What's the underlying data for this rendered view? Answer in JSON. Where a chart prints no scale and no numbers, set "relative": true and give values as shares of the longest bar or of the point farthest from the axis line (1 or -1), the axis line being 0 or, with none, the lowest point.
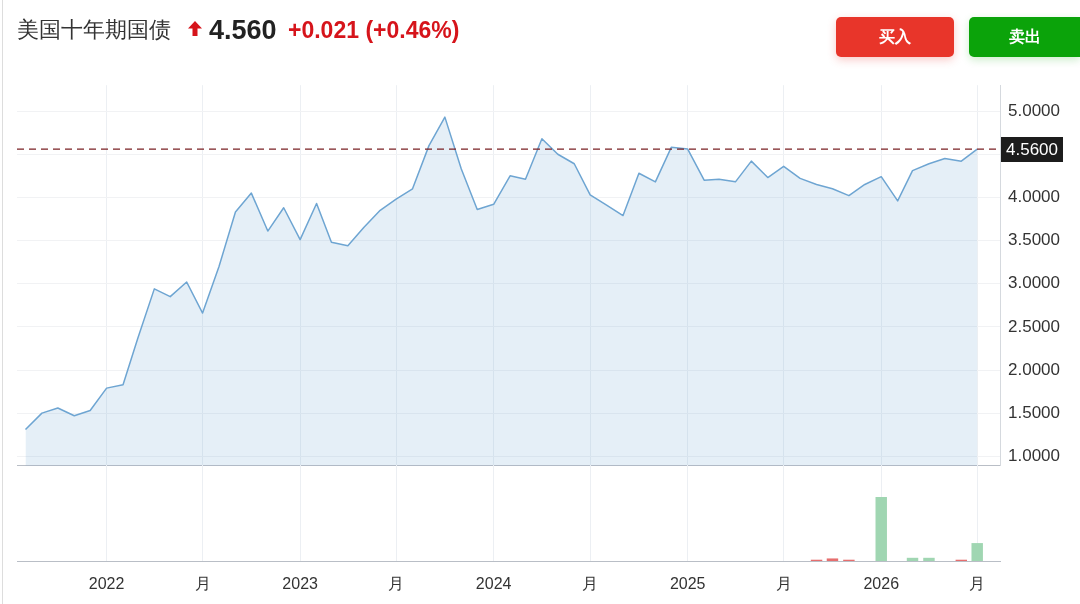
{
  "chart_data": [
    {
      "type": "area",
      "title": "美国十年期国债",
      "annotations": [
        "4.560",
        "+0.021 (+0.46%)",
        "买入",
        "卖出"
      ],
      "x": [
        "2021-08",
        "2021-09",
        "2021-10",
        "2021-11",
        "2021-12",
        "2022-01",
        "2022-02",
        "2022-03",
        "2022-04",
        "2022-05",
        "2022-06",
        "2022-07",
        "2022-08",
        "2022-09",
        "2022-10",
        "2022-11",
        "2022-12",
        "2023-01",
        "2023-02",
        "2023-03",
        "2023-04",
        "2023-05",
        "2023-06",
        "2023-07",
        "2023-08",
        "2023-09",
        "2023-10",
        "2023-11",
        "2023-12",
        "2024-01",
        "2024-02",
        "2024-03",
        "2024-04",
        "2024-05",
        "2024-06",
        "2024-07",
        "2024-08",
        "2024-09",
        "2024-10",
        "2024-11",
        "2024-12",
        "2025-01",
        "2025-02",
        "2025-03",
        "2025-04",
        "2025-05",
        "2025-06",
        "2025-07",
        "2025-08",
        "2025-09",
        "2025-10",
        "2025-11",
        "2025-12",
        "2026-01",
        "2026-02",
        "2026-03",
        "2026-04",
        "2026-05",
        "2026-06",
        "2026-07"
      ],
      "values": [
        1.31,
        1.5,
        1.56,
        1.47,
        1.53,
        1.79,
        1.83,
        2.37,
        2.94,
        2.85,
        3.02,
        2.66,
        3.2,
        3.83,
        4.05,
        3.61,
        3.88,
        3.51,
        3.93,
        3.48,
        3.44,
        3.65,
        3.85,
        3.98,
        4.1,
        4.6,
        4.93,
        4.33,
        3.86,
        3.92,
        4.25,
        4.21,
        4.68,
        4.5,
        4.39,
        4.03,
        3.91,
        3.79,
        4.28,
        4.18,
        4.58,
        4.56,
        4.2,
        4.21,
        4.18,
        4.42,
        4.23,
        4.36,
        4.22,
        4.15,
        4.1,
        4.02,
        4.15,
        4.24,
        3.96,
        4.31,
        4.39,
        4.45,
        4.42,
        4.56
      ],
      "color": "#6ea5d2",
      "xlim": [
        "2021-07-16",
        "2026-08-13"
      ],
      "xticks": [
        {
          "value": "2022-01",
          "label": null
        },
        {
          "value": "2022-07",
          "label": null
        },
        {
          "value": "2023-01",
          "label": null
        },
        {
          "value": "2023-07",
          "label": null
        },
        {
          "value": "2024-01",
          "label": null
        },
        {
          "value": "2024-07",
          "label": null
        },
        {
          "value": "2025-01",
          "label": null
        },
        {
          "value": "2025-07",
          "label": null
        },
        {
          "value": "2026-01",
          "label": null
        },
        {
          "value": "2026-07",
          "label": null
        }
      ],
      "ylim": [
        0.89,
        5.3
      ],
      "yticks": [
        {
          "value": 1,
          "label": "1.0000"
        },
        {
          "value": 1.5,
          "label": "1.5000"
        },
        {
          "value": 2,
          "label": "2.0000"
        },
        {
          "value": 2.5,
          "label": "2.5000"
        },
        {
          "value": 3,
          "label": "3.0000"
        },
        {
          "value": 3.5,
          "label": "3.5000"
        },
        {
          "value": 4,
          "label": "4.0000"
        },
        {
          "value": 4.5,
          "label": null
        },
        {
          "value": 5,
          "label": "5.0000"
        }
      ],
      "ref_lines": [
        {
          "axis": "y",
          "value": 4.56,
          "label": "4.5600",
          "color": "#7a2024",
          "line_style": "dashed"
        }
      ],
      "grid": true,
      "tick_labels": "y"
    },
    {
      "type": "bar",
      "relative": true,
      "x": [
        "2025-09",
        "2025-10",
        "2025-11",
        "2026-01",
        "2026-03",
        "2026-04",
        "2026-06",
        "2026-07"
      ],
      "values": [
        0.02,
        0.04,
        0.02,
        1,
        0.05,
        0.05,
        0.02,
        0.28
      ],
      "colors": [
        "#e66e6e",
        "#e66e6e",
        "#e66e6e",
        "#a0d6b2",
        "#a0d6b2",
        "#a0d6b2",
        "#e66e6e",
        "#a0d6b2"
      ],
      "xlim": [
        "2021-07-16",
        "2026-08-13"
      ],
      "xticks": [
        {
          "value": "2022-01",
          "label": "2022"
        },
        {
          "value": "2022-07",
          "label": "月"
        },
        {
          "value": "2023-01",
          "label": "2023"
        },
        {
          "value": "2023-07",
          "label": "月"
        },
        {
          "value": "2024-01",
          "label": "2024"
        },
        {
          "value": "2024-07",
          "label": "月"
        },
        {
          "value": "2025-01",
          "label": "2025"
        },
        {
          "value": "2025-07",
          "label": "月"
        },
        {
          "value": "2026-01",
          "label": "2026"
        },
        {
          "value": "2026-07",
          "label": "月"
        }
      ],
      "grid": "x",
      "tick_labels": "x"
    }
  ]
}
